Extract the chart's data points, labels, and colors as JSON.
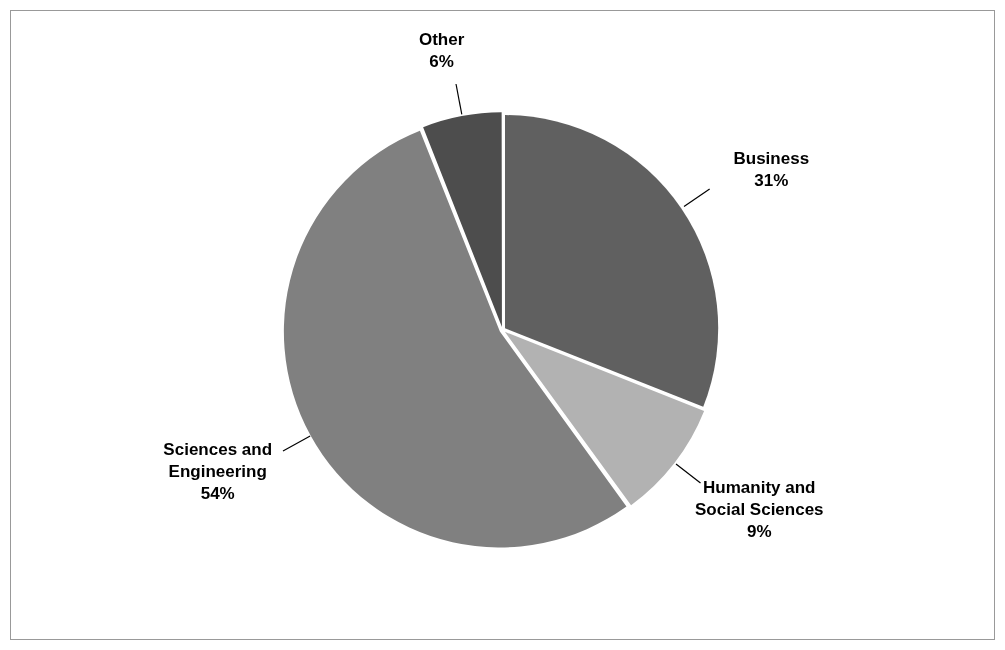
{
  "chart_data": {
    "type": "pie",
    "categories": [
      "Business",
      "Humanity and Social Sciences",
      "Sciences and Engineering",
      "Other"
    ],
    "values": [
      31,
      9,
      54,
      6
    ],
    "value_labels": [
      "31%",
      "9%",
      "54%",
      "6%"
    ],
    "colors": [
      "#606060",
      "#b2b2b2",
      "#808080",
      "#4d4d4d"
    ],
    "legend": false
  }
}
